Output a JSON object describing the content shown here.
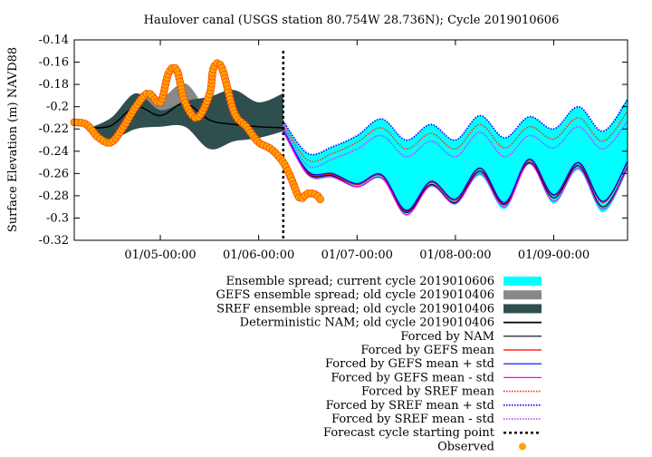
{
  "chart_data": {
    "type": "line",
    "title": "Haulover canal (USGS station 80.754W 28.736N); Cycle 2019010606",
    "ylabel": "Surface Elevation (m) NAVD88",
    "xlabel": "",
    "ylim": [
      -0.32,
      -0.14
    ],
    "y_ticks": [
      "-0.14",
      "-0.16",
      "-0.18",
      "-0.2",
      "-0.22",
      "-0.24",
      "-0.26",
      "-0.28",
      "-0.3",
      "-0.32"
    ],
    "x_start": "2019-01-04 03:00",
    "x_end": "2019-01-09 18:00",
    "x_ticks": [
      "01/05-00:00",
      "01/06-00:00",
      "01/07-00:00",
      "01/08-00:00",
      "01/09-00:00"
    ],
    "forecast_start": "2019-01-06 06:00",
    "grid": false,
    "legend_position": "below",
    "series": [
      {
        "name": "Ensemble spread; current cycle 2019010606",
        "color": "#00ffff",
        "upper": [
          [
            "2019-01-06 06:00",
            -0.213
          ],
          [
            "2019-01-06 12:00",
            -0.242
          ],
          [
            "2019-01-06 18:00",
            -0.236
          ],
          [
            "2019-01-07 00:00",
            -0.226
          ],
          [
            "2019-01-07 06:00",
            -0.211
          ],
          [
            "2019-01-07 12:00",
            -0.23
          ],
          [
            "2019-01-07 18:00",
            -0.216
          ],
          [
            "2019-01-08 00:00",
            -0.23
          ],
          [
            "2019-01-08 06:00",
            -0.208
          ],
          [
            "2019-01-08 12:00",
            -0.228
          ],
          [
            "2019-01-08 18:00",
            -0.209
          ],
          [
            "2019-01-09 00:00",
            -0.22
          ],
          [
            "2019-01-09 06:00",
            -0.2
          ],
          [
            "2019-01-09 12:00",
            -0.222
          ],
          [
            "2019-01-09 18:00",
            -0.192
          ]
        ],
        "lower": [
          [
            "2019-01-06 06:00",
            -0.222
          ],
          [
            "2019-01-06 12:00",
            -0.262
          ],
          [
            "2019-01-06 18:00",
            -0.264
          ],
          [
            "2019-01-07 00:00",
            -0.272
          ],
          [
            "2019-01-07 06:00",
            -0.265
          ],
          [
            "2019-01-07 12:00",
            -0.298
          ],
          [
            "2019-01-07 18:00",
            -0.272
          ],
          [
            "2019-01-08 00:00",
            -0.288
          ],
          [
            "2019-01-08 06:00",
            -0.262
          ],
          [
            "2019-01-08 12:00",
            -0.292
          ],
          [
            "2019-01-08 18:00",
            -0.252
          ],
          [
            "2019-01-09 00:00",
            -0.287
          ],
          [
            "2019-01-09 06:00",
            -0.257
          ],
          [
            "2019-01-09 12:00",
            -0.295
          ],
          [
            "2019-01-09 18:00",
            -0.257
          ]
        ]
      },
      {
        "name": "GEFS ensemble spread; old cycle 2019010406",
        "color": "#888888",
        "upper": [
          [
            "2019-01-04 06:00",
            -0.219
          ],
          [
            "2019-01-04 12:00",
            -0.213
          ],
          [
            "2019-01-04 18:00",
            -0.191
          ],
          [
            "2019-01-05 00:00",
            -0.193
          ],
          [
            "2019-01-05 06:00",
            -0.179
          ],
          [
            "2019-01-05 12:00",
            -0.204
          ],
          [
            "2019-01-05 18:00",
            -0.2
          ],
          [
            "2019-01-06 00:00",
            -0.211
          ],
          [
            "2019-01-06 06:00",
            -0.212
          ]
        ],
        "lower": [
          [
            "2019-01-04 06:00",
            -0.221
          ],
          [
            "2019-01-04 12:00",
            -0.222
          ],
          [
            "2019-01-04 18:00",
            -0.213
          ],
          [
            "2019-01-05 00:00",
            -0.217
          ],
          [
            "2019-01-05 06:00",
            -0.215
          ],
          [
            "2019-01-05 12:00",
            -0.223
          ],
          [
            "2019-01-05 18:00",
            -0.23
          ],
          [
            "2019-01-06 00:00",
            -0.228
          ],
          [
            "2019-01-06 06:00",
            -0.222
          ]
        ]
      },
      {
        "name": "SREF ensemble spread; old cycle 2019010406",
        "color": "#2f4f4f",
        "upper": [
          [
            "2019-01-04 06:00",
            -0.22
          ],
          [
            "2019-01-04 12:00",
            -0.21
          ],
          [
            "2019-01-04 18:00",
            -0.188
          ],
          [
            "2019-01-05 00:00",
            -0.203
          ],
          [
            "2019-01-05 06:00",
            -0.195
          ],
          [
            "2019-01-05 12:00",
            -0.191
          ],
          [
            "2019-01-05 18:00",
            -0.185
          ],
          [
            "2019-01-06 00:00",
            -0.196
          ],
          [
            "2019-01-06 06:00",
            -0.188
          ]
        ],
        "lower": [
          [
            "2019-01-04 06:00",
            -0.221
          ],
          [
            "2019-01-04 12:00",
            -0.229
          ],
          [
            "2019-01-04 18:00",
            -0.22
          ],
          [
            "2019-01-05 00:00",
            -0.218
          ],
          [
            "2019-01-05 06:00",
            -0.218
          ],
          [
            "2019-01-05 12:00",
            -0.238
          ],
          [
            "2019-01-05 18:00",
            -0.231
          ],
          [
            "2019-01-06 00:00",
            -0.228
          ],
          [
            "2019-01-06 06:00",
            -0.222
          ]
        ]
      },
      {
        "name": "Deterministic NAM; old cycle 2019010406",
        "color": "#000000",
        "points": [
          [
            "2019-01-04 06:00",
            -0.219
          ],
          [
            "2019-01-04 12:00",
            -0.217
          ],
          [
            "2019-01-04 18:00",
            -0.2
          ],
          [
            "2019-01-05 00:00",
            -0.208
          ],
          [
            "2019-01-05 06:00",
            -0.197
          ],
          [
            "2019-01-05 12:00",
            -0.212
          ],
          [
            "2019-01-05 18:00",
            -0.216
          ],
          [
            "2019-01-06 00:00",
            -0.218
          ],
          [
            "2019-01-06 06:00",
            -0.219
          ]
        ]
      },
      {
        "name": "Forced by NAM",
        "color": "#000000",
        "points": [
          [
            "2019-01-06 06:00",
            -0.222
          ],
          [
            "2019-01-06 12:00",
            -0.26
          ],
          [
            "2019-01-06 18:00",
            -0.262
          ],
          [
            "2019-01-07 00:00",
            -0.272
          ],
          [
            "2019-01-07 06:00",
            -0.264
          ],
          [
            "2019-01-07 12:00",
            -0.295
          ],
          [
            "2019-01-07 18:00",
            -0.27
          ],
          [
            "2019-01-08 00:00",
            -0.286
          ],
          [
            "2019-01-08 06:00",
            -0.258
          ],
          [
            "2019-01-08 12:00",
            -0.288
          ],
          [
            "2019-01-08 18:00",
            -0.25
          ],
          [
            "2019-01-09 00:00",
            -0.282
          ],
          [
            "2019-01-09 06:00",
            -0.253
          ],
          [
            "2019-01-09 12:00",
            -0.29
          ],
          [
            "2019-01-09 18:00",
            -0.254
          ]
        ]
      },
      {
        "name": "Forced by GEFS mean",
        "color": "#ff0000",
        "points": [
          [
            "2019-01-06 06:00",
            -0.22
          ],
          [
            "2019-01-06 12:00",
            -0.259
          ],
          [
            "2019-01-06 18:00",
            -0.261
          ],
          [
            "2019-01-07 00:00",
            -0.27
          ],
          [
            "2019-01-07 06:00",
            -0.262
          ],
          [
            "2019-01-07 12:00",
            -0.294
          ],
          [
            "2019-01-07 18:00",
            -0.268
          ],
          [
            "2019-01-08 00:00",
            -0.284
          ],
          [
            "2019-01-08 06:00",
            -0.256
          ],
          [
            "2019-01-08 12:00",
            -0.287
          ],
          [
            "2019-01-08 18:00",
            -0.248
          ],
          [
            "2019-01-09 00:00",
            -0.28
          ],
          [
            "2019-01-09 06:00",
            -0.251
          ],
          [
            "2019-01-09 12:00",
            -0.286
          ],
          [
            "2019-01-09 18:00",
            -0.25
          ]
        ]
      },
      {
        "name": "Forced by GEFS mean + std",
        "color": "#0000ff",
        "points": [
          [
            "2019-01-06 06:00",
            -0.22
          ],
          [
            "2019-01-06 12:00",
            -0.258
          ],
          [
            "2019-01-06 18:00",
            -0.26
          ],
          [
            "2019-01-07 00:00",
            -0.269
          ],
          [
            "2019-01-07 06:00",
            -0.261
          ],
          [
            "2019-01-07 12:00",
            -0.293
          ],
          [
            "2019-01-07 18:00",
            -0.267
          ],
          [
            "2019-01-08 00:00",
            -0.283
          ],
          [
            "2019-01-08 06:00",
            -0.255
          ],
          [
            "2019-01-08 12:00",
            -0.286
          ],
          [
            "2019-01-08 18:00",
            -0.247
          ],
          [
            "2019-01-09 00:00",
            -0.279
          ],
          [
            "2019-01-09 06:00",
            -0.25
          ],
          [
            "2019-01-09 12:00",
            -0.285
          ],
          [
            "2019-01-09 18:00",
            -0.249
          ]
        ]
      },
      {
        "name": "Forced by GEFS mean - std",
        "color": "#ff00ff",
        "points": [
          [
            "2019-01-06 06:00",
            -0.221
          ],
          [
            "2019-01-06 12:00",
            -0.261
          ],
          [
            "2019-01-06 18:00",
            -0.263
          ],
          [
            "2019-01-07 00:00",
            -0.272
          ],
          [
            "2019-01-07 06:00",
            -0.264
          ],
          [
            "2019-01-07 12:00",
            -0.297
          ],
          [
            "2019-01-07 18:00",
            -0.271
          ],
          [
            "2019-01-08 00:00",
            -0.287
          ],
          [
            "2019-01-08 06:00",
            -0.26
          ],
          [
            "2019-01-08 12:00",
            -0.29
          ],
          [
            "2019-01-08 18:00",
            -0.251
          ],
          [
            "2019-01-09 00:00",
            -0.285
          ],
          [
            "2019-01-09 06:00",
            -0.255
          ],
          [
            "2019-01-09 12:00",
            -0.292
          ],
          [
            "2019-01-09 18:00",
            -0.255
          ]
        ]
      },
      {
        "name": "Forced by SREF mean",
        "color": "#ff3300",
        "dotted": true,
        "points": [
          [
            "2019-01-06 06:00",
            -0.215
          ],
          [
            "2019-01-06 12:00",
            -0.248
          ],
          [
            "2019-01-06 18:00",
            -0.242
          ],
          [
            "2019-01-07 00:00",
            -0.232
          ],
          [
            "2019-01-07 06:00",
            -0.219
          ],
          [
            "2019-01-07 12:00",
            -0.238
          ],
          [
            "2019-01-07 18:00",
            -0.224
          ],
          [
            "2019-01-08 00:00",
            -0.238
          ],
          [
            "2019-01-08 06:00",
            -0.216
          ],
          [
            "2019-01-08 12:00",
            -0.237
          ],
          [
            "2019-01-08 18:00",
            -0.218
          ],
          [
            "2019-01-09 00:00",
            -0.229
          ],
          [
            "2019-01-09 06:00",
            -0.21
          ],
          [
            "2019-01-09 12:00",
            -0.231
          ],
          [
            "2019-01-09 18:00",
            -0.204
          ]
        ]
      },
      {
        "name": "Forced by SREF mean + std",
        "color": "#0000ff",
        "dotted": true,
        "points": [
          [
            "2019-01-06 06:00",
            -0.213
          ],
          [
            "2019-01-06 12:00",
            -0.242
          ],
          [
            "2019-01-06 18:00",
            -0.236
          ],
          [
            "2019-01-07 00:00",
            -0.226
          ],
          [
            "2019-01-07 06:00",
            -0.211
          ],
          [
            "2019-01-07 12:00",
            -0.23
          ],
          [
            "2019-01-07 18:00",
            -0.216
          ],
          [
            "2019-01-08 00:00",
            -0.23
          ],
          [
            "2019-01-08 06:00",
            -0.208
          ],
          [
            "2019-01-08 12:00",
            -0.228
          ],
          [
            "2019-01-08 18:00",
            -0.209
          ],
          [
            "2019-01-09 00:00",
            -0.22
          ],
          [
            "2019-01-09 06:00",
            -0.2
          ],
          [
            "2019-01-09 12:00",
            -0.222
          ],
          [
            "2019-01-09 18:00",
            -0.194
          ]
        ]
      },
      {
        "name": "Forced by SREF mean - std",
        "color": "#cc33ff",
        "dotted": true,
        "points": [
          [
            "2019-01-06 06:00",
            -0.217
          ],
          [
            "2019-01-06 12:00",
            -0.253
          ],
          [
            "2019-01-06 18:00",
            -0.247
          ],
          [
            "2019-01-07 00:00",
            -0.238
          ],
          [
            "2019-01-07 06:00",
            -0.226
          ],
          [
            "2019-01-07 12:00",
            -0.245
          ],
          [
            "2019-01-07 18:00",
            -0.231
          ],
          [
            "2019-01-08 00:00",
            -0.245
          ],
          [
            "2019-01-08 06:00",
            -0.223
          ],
          [
            "2019-01-08 12:00",
            -0.245
          ],
          [
            "2019-01-08 18:00",
            -0.226
          ],
          [
            "2019-01-09 00:00",
            -0.237
          ],
          [
            "2019-01-09 06:00",
            -0.218
          ],
          [
            "2019-01-09 12:00",
            -0.238
          ],
          [
            "2019-01-09 18:00",
            -0.213
          ]
        ]
      },
      {
        "name": "Forecast cycle starting point",
        "color": "#000000",
        "dashed": true
      },
      {
        "name": "Observed",
        "color": "#ffa500",
        "marker": "circle",
        "points": [
          [
            "2019-01-04 03:00",
            -0.214
          ],
          [
            "2019-01-04 06:00",
            -0.216
          ],
          [
            "2019-01-04 09:00",
            -0.228
          ],
          [
            "2019-01-04 12:00",
            -0.232
          ],
          [
            "2019-01-04 15:00",
            -0.218
          ],
          [
            "2019-01-04 18:00",
            -0.2
          ],
          [
            "2019-01-04 21:00",
            -0.188
          ],
          [
            "2019-01-05 00:00",
            -0.196
          ],
          [
            "2019-01-05 02:00",
            -0.17
          ],
          [
            "2019-01-05 04:00",
            -0.167
          ],
          [
            "2019-01-05 06:00",
            -0.196
          ],
          [
            "2019-01-05 09:00",
            -0.21
          ],
          [
            "2019-01-05 12:00",
            -0.189
          ],
          [
            "2019-01-05 13:00",
            -0.165
          ],
          [
            "2019-01-05 15:00",
            -0.165
          ],
          [
            "2019-01-05 18:00",
            -0.205
          ],
          [
            "2019-01-05 21:00",
            -0.218
          ],
          [
            "2019-01-06 00:00",
            -0.232
          ],
          [
            "2019-01-06 03:00",
            -0.238
          ],
          [
            "2019-01-06 06:00",
            -0.25
          ],
          [
            "2019-01-06 08:00",
            -0.265
          ],
          [
            "2019-01-06 10:00",
            -0.282
          ],
          [
            "2019-01-06 12:00",
            -0.278
          ],
          [
            "2019-01-06 14:00",
            -0.279
          ],
          [
            "2019-01-06 15:00",
            -0.283
          ]
        ]
      }
    ],
    "legend": [
      {
        "label": "Ensemble spread; current cycle 2019010606",
        "style": "band",
        "color": "#00ffff"
      },
      {
        "label": "GEFS ensemble spread; old cycle 2019010406",
        "style": "band",
        "color": "#888888"
      },
      {
        "label": "SREF ensemble spread; old cycle 2019010406",
        "style": "band",
        "color": "#2f4f4f"
      },
      {
        "label": "Deterministic NAM; old cycle 2019010406",
        "style": "thick",
        "color": "#000000"
      },
      {
        "label": "Forced by NAM",
        "style": "line",
        "color": "#000000"
      },
      {
        "label": "Forced by GEFS mean",
        "style": "line",
        "color": "#ff0000"
      },
      {
        "label": "Forced by GEFS mean + std",
        "style": "line",
        "color": "#0000ff"
      },
      {
        "label": "Forced by GEFS mean - std",
        "style": "line",
        "color": "#ff00ff"
      },
      {
        "label": "Forced by SREF mean",
        "style": "dotted",
        "color": "#ff3300"
      },
      {
        "label": "Forced by SREF mean + std",
        "style": "dotted",
        "color": "#0000ff"
      },
      {
        "label": "Forced by SREF mean - std",
        "style": "dotted",
        "color": "#cc33ff"
      },
      {
        "label": "Forecast cycle starting point",
        "style": "dashed",
        "color": "#000000"
      },
      {
        "label": "Observed",
        "style": "marker",
        "color": "#ffa500"
      }
    ]
  }
}
